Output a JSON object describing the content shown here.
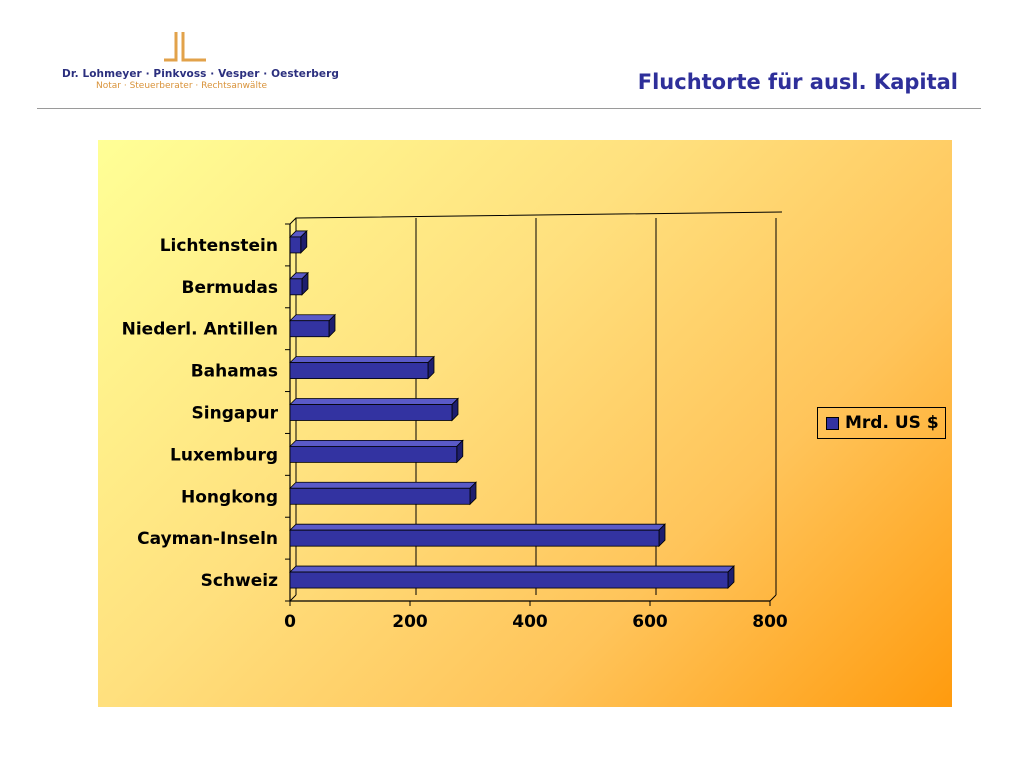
{
  "header": {
    "firm_name": "Dr. Lohmeyer · Pinkvoss · Vesper · Oesterberg",
    "firm_tagline": "Notar · Steuerberater · Rechtsanwälte",
    "slide_title": "Fluchtorte für ausl. Kapital"
  },
  "colors": {
    "bar_fill": "#3333a1",
    "bar_top": "#5a5ac8",
    "bar_side": "#1e1e6e",
    "title": "#2e2f9a",
    "logo_mark": "#e2a24a"
  },
  "chart_data": {
    "type": "bar",
    "orientation": "horizontal",
    "categories": [
      "Lichtenstein",
      "Bermudas",
      "Niederl. Antillen",
      "Bahamas",
      "Singapur",
      "Luxemburg",
      "Hongkong",
      "Cayman-Inseln",
      "Schweiz"
    ],
    "series": [
      {
        "name": "Mrd. US $",
        "values": [
          18,
          20,
          65,
          230,
          270,
          278,
          300,
          615,
          730
        ]
      }
    ],
    "xlim": [
      0,
      800
    ],
    "x_ticks": [
      "0",
      "200",
      "400",
      "600",
      "800"
    ],
    "grid": "vertical gridlines",
    "legend_position": "right",
    "style": "3d"
  }
}
